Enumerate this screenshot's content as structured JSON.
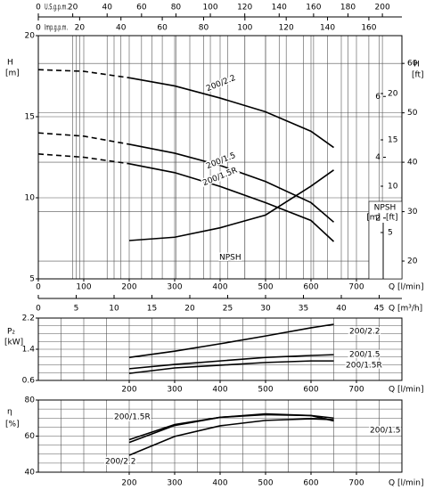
{
  "chart_data": [
    {
      "type": "line",
      "y_label": "H",
      "y_unit": "[m]",
      "y2_label": "H",
      "y2_unit": "[ft]",
      "x_label": "Q",
      "x_unit": "[l/min]",
      "x2_label": "Q",
      "x2_unit": "[m³/h]",
      "x3_label": "U.S.g.p.m.",
      "x4_label": "Imp.g.p.m.",
      "xlim": [
        0,
        800
      ],
      "xticks": [
        0,
        100,
        200,
        300,
        400,
        500,
        600,
        700
      ],
      "x2lim": [
        0,
        48
      ],
      "x2ticks": [
        0,
        5,
        10,
        15,
        20,
        25,
        30,
        35,
        40,
        45
      ],
      "x3lim": [
        0,
        211.34
      ],
      "x3ticks": [
        0,
        20,
        40,
        60,
        80,
        100,
        120,
        140,
        160,
        180,
        200
      ],
      "x4lim": [
        0,
        176
      ],
      "x4ticks": [
        0,
        20,
        40,
        60,
        80,
        100,
        120,
        140,
        160
      ],
      "ylim": [
        5,
        20
      ],
      "yticks": [
        5,
        10,
        15,
        20
      ],
      "y2lim": [
        16.4,
        65.62
      ],
      "y2ticks": [
        20,
        30,
        40,
        50,
        60
      ],
      "dashed_until": 200,
      "npsh_axis": {
        "title": "NPSH",
        "y_unit": "[m]",
        "y2_unit": "[ft]",
        "ylim": [
          0,
          8
        ],
        "yticks": [
          2,
          4,
          6
        ],
        "y2lim": [
          0,
          26.25
        ],
        "y2ticks": [
          5,
          10,
          15,
          20
        ]
      },
      "series": [
        {
          "name": "200/2.2",
          "color": "#000000",
          "x": [
            0,
            100,
            200,
            300,
            400,
            500,
            600,
            650
          ],
          "values": [
            17.9,
            17.8,
            17.4,
            16.9,
            16.15,
            15.3,
            14.1,
            13.1
          ]
        },
        {
          "name": "200/1.5",
          "color": "#000000",
          "x": [
            0,
            100,
            200,
            300,
            400,
            500,
            600,
            650
          ],
          "values": [
            14.0,
            13.8,
            13.3,
            12.75,
            12.0,
            11.0,
            9.7,
            8.5
          ]
        },
        {
          "name": "200/1.5R",
          "color": "#000000",
          "x": [
            0,
            100,
            200,
            300,
            400,
            500,
            600,
            650
          ],
          "values": [
            12.7,
            12.5,
            12.1,
            11.55,
            10.7,
            9.7,
            8.6,
            7.3
          ]
        },
        {
          "name": "NPSH",
          "color": "#000000",
          "axis": "y3",
          "x": [
            200,
            300,
            400,
            500,
            600,
            650
          ],
          "values": [
            1.26,
            1.37,
            1.68,
            2.1,
            3.05,
            3.58
          ]
        }
      ]
    },
    {
      "type": "line",
      "y_label": "P₂",
      "y_unit": "[kW]",
      "x_label": "Q",
      "x_unit": "[l/min]",
      "xlim": [
        0,
        800
      ],
      "xticks": [
        200,
        300,
        400,
        500,
        600,
        700
      ],
      "xgrid": [
        50,
        100,
        150,
        200,
        250,
        300,
        350,
        400,
        450,
        500,
        550,
        600,
        650,
        700,
        750
      ],
      "ylim": [
        0.6,
        2.2
      ],
      "yticks": [
        0.6,
        1.4,
        2.2
      ],
      "ygrid": [
        0.8,
        1.0,
        1.2,
        1.4,
        1.6,
        1.8,
        2.0
      ],
      "series": [
        {
          "name": "200/2.2",
          "color": "#000000",
          "x": [
            200,
            300,
            400,
            500,
            600,
            650
          ],
          "values": [
            1.19,
            1.35,
            1.54,
            1.74,
            1.95,
            2.04
          ]
        },
        {
          "name": "200/1.5",
          "color": "#000000",
          "x": [
            200,
            300,
            400,
            500,
            600,
            650
          ],
          "values": [
            0.9,
            1.01,
            1.1,
            1.19,
            1.24,
            1.26
          ]
        },
        {
          "name": "200/1.5R",
          "color": "#000000",
          "x": [
            200,
            300,
            400,
            500,
            600,
            650
          ],
          "values": [
            0.78,
            0.92,
            0.99,
            1.06,
            1.1,
            1.1
          ]
        }
      ]
    },
    {
      "type": "line",
      "y_label": "η",
      "y_unit": "[%]",
      "x_label": "Q",
      "x_unit": "[l/min]",
      "xlim": [
        0,
        800
      ],
      "xticks": [
        200,
        300,
        400,
        500,
        600,
        700
      ],
      "xgrid": [
        50,
        100,
        150,
        200,
        250,
        300,
        350,
        400,
        450,
        500,
        550,
        600,
        650,
        700,
        750
      ],
      "ylim": [
        40,
        80
      ],
      "yticks": [
        40,
        60,
        80
      ],
      "ygrid": [
        45,
        50,
        55,
        60,
        65,
        70,
        75
      ],
      "series": [
        {
          "name": "200/2.2",
          "color": "#000000",
          "x": [
            200,
            300,
            400,
            500,
            600,
            650
          ],
          "values": [
            49.4,
            59.8,
            65.7,
            68.7,
            69.6,
            69.1
          ]
        },
        {
          "name": "200/1.5",
          "color": "#000000",
          "x": [
            200,
            300,
            400,
            500,
            600,
            650
          ],
          "values": [
            56.5,
            65.9,
            70.4,
            72.3,
            71.4,
            68.4
          ]
        },
        {
          "name": "200/1.5R",
          "color": "#000000",
          "x": [
            200,
            300,
            400,
            500,
            600,
            650
          ],
          "values": [
            58.0,
            66.4,
            70.4,
            71.9,
            71.4,
            70.0
          ]
        }
      ]
    }
  ]
}
